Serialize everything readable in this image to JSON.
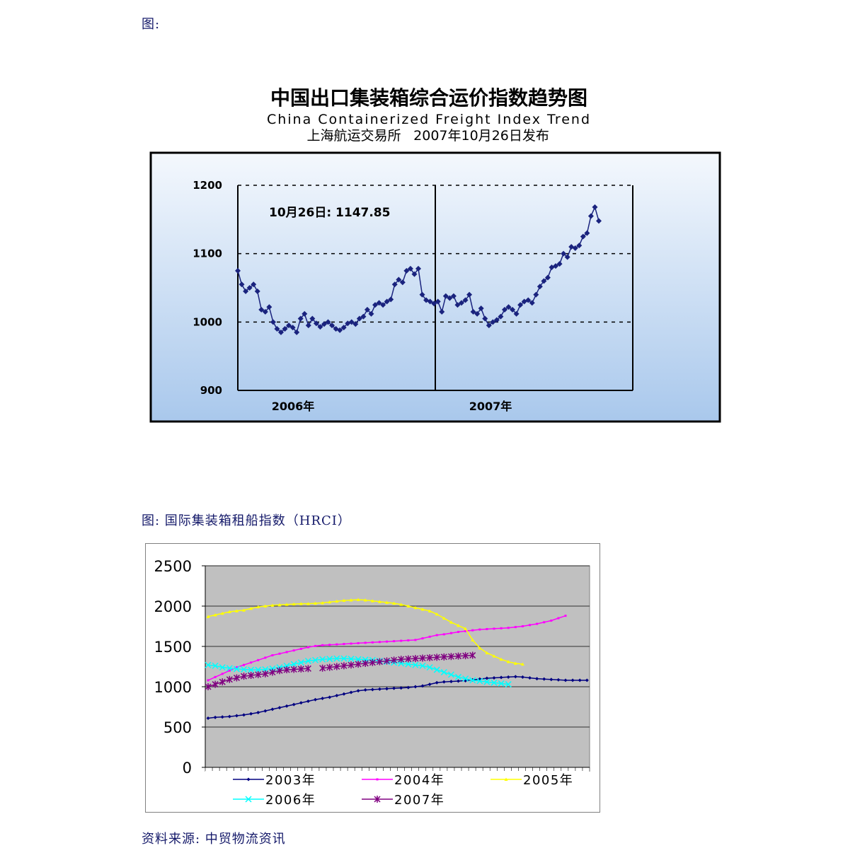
{
  "captions": {
    "fig1": "图:",
    "fig2": "图: 国际集装箱租船指数（HRCI）",
    "source": "资料来源: 中贸物流资讯"
  },
  "chart_data": [
    {
      "type": "line",
      "title": "中国出口集装箱综合运价指数趋势图",
      "subtitle": "China Containerized Freight Index Trend",
      "publisher": "上海航运交易所",
      "release": "2007年10月26日发布",
      "annotation": "10月26日: 1147.85",
      "ylim": [
        900,
        1200
      ],
      "yticks": [
        900,
        1000,
        1100,
        1200
      ],
      "x_period_labels": [
        "2006年",
        "2007年"
      ],
      "grid": "dashed at 1000, 1100, 1200",
      "colors": {
        "line": "#1a237e",
        "frame": "#000000"
      },
      "series": [
        {
          "values": [
            1075,
            1055,
            1045,
            1050,
            1055,
            1045,
            1018,
            1015,
            1022,
            1000,
            990,
            985,
            990,
            995,
            992,
            985,
            1005,
            1012,
            995,
            1005,
            998,
            993,
            997,
            1000,
            995,
            990,
            988,
            992,
            998,
            1000,
            997,
            1005,
            1008,
            1018,
            1012,
            1025,
            1028,
            1025,
            1030,
            1033,
            1055,
            1062,
            1058,
            1075,
            1078,
            1070,
            1078,
            1040,
            1032,
            1030,
            1027,
            1030,
            1015,
            1038,
            1035,
            1038,
            1025,
            1028,
            1032,
            1040,
            1015,
            1012,
            1020,
            1005,
            995,
            1000,
            1003,
            1008,
            1018,
            1022,
            1018,
            1012,
            1025,
            1030,
            1032,
            1028,
            1040,
            1052,
            1060,
            1065,
            1080,
            1082,
            1085,
            1100,
            1095,
            1110,
            1108,
            1112,
            1125,
            1130,
            1155,
            1168,
            1147.85
          ]
        }
      ]
    },
    {
      "type": "line",
      "title": "",
      "ylim": [
        0,
        2500
      ],
      "yticks": [
        0,
        500,
        1000,
        1500,
        2000,
        2500
      ],
      "grid": "horizontal",
      "legend": "bottom",
      "colors": {
        "plot_bg": "#c0c0c0"
      },
      "series": [
        {
          "name": "2003年",
          "color": "#000080",
          "marker": "diamond",
          "values": [
            610,
            620,
            625,
            630,
            640,
            650,
            665,
            680,
            700,
            720,
            740,
            760,
            780,
            800,
            820,
            840,
            855,
            870,
            890,
            910,
            930,
            950,
            960,
            965,
            970,
            975,
            980,
            985,
            990,
            1000,
            1010,
            1030,
            1050,
            1060,
            1065,
            1070,
            1075,
            1085,
            1095,
            1105,
            1110,
            1115,
            1120,
            1125,
            1120,
            1110,
            1100,
            1095,
            1090,
            1085,
            1080,
            1080,
            1080,
            1080
          ]
        },
        {
          "name": "2004年",
          "color": "#ff00ff",
          "marker": "square",
          "values": [
            1080,
            1120,
            1160,
            1200,
            1240,
            1270,
            1300,
            1330,
            1360,
            1390,
            1410,
            1430,
            1450,
            1470,
            1490,
            1505,
            1515,
            1520,
            1525,
            1530,
            1535,
            1540,
            1545,
            1550,
            1555,
            1560,
            1565,
            1570,
            1575,
            1580,
            1600,
            1620,
            1640,
            1650,
            1665,
            1680,
            1690,
            1700,
            1710,
            1715,
            1720,
            1725,
            1730,
            1740,
            1750,
            1765,
            1780,
            1800,
            1820,
            1850,
            1880
          ]
        },
        {
          "name": "2005年",
          "color": "#ffff00",
          "marker": "triangle",
          "values": [
            1870,
            1890,
            1910,
            1930,
            1940,
            1950,
            1970,
            1990,
            2000,
            2010,
            2015,
            2020,
            2025,
            2030,
            2030,
            2035,
            2040,
            2050,
            2060,
            2070,
            2075,
            2080,
            2075,
            2065,
            2055,
            2045,
            2035,
            2020,
            2000,
            1980,
            1960,
            1940,
            1900,
            1850,
            1800,
            1760,
            1720,
            1580,
            1480,
            1420,
            1380,
            1340,
            1310,
            1290,
            1280
          ]
        },
        {
          "name": "2006年",
          "color": "#00ffff",
          "marker": "x",
          "values": [
            1270,
            1260,
            1240,
            1230,
            1220,
            1215,
            1210,
            1210,
            1215,
            1225,
            1240,
            1260,
            1280,
            1300,
            1320,
            1330,
            1340,
            1345,
            1350,
            1350,
            1345,
            1340,
            1335,
            1330,
            1320,
            1310,
            1300,
            1290,
            1280,
            1270,
            1260,
            1240,
            1210,
            1180,
            1150,
            1120,
            1100,
            1080,
            1070,
            1060,
            1050,
            1040,
            1030
          ]
        },
        {
          "name": "2007年",
          "color": "#800080",
          "marker": "star",
          "values": [
            1000,
            1030,
            1060,
            1090,
            1110,
            1130,
            1140,
            1150,
            1160,
            1180,
            1200,
            1210,
            1215,
            1220,
            1225,
            null,
            1230,
            1240,
            1250,
            1260,
            1270,
            1280,
            1290,
            1300,
            1310,
            1320,
            1330,
            1340,
            1345,
            1350,
            1355,
            1360,
            1365,
            1370,
            1375,
            1380,
            1385,
            1390
          ]
        }
      ]
    }
  ]
}
